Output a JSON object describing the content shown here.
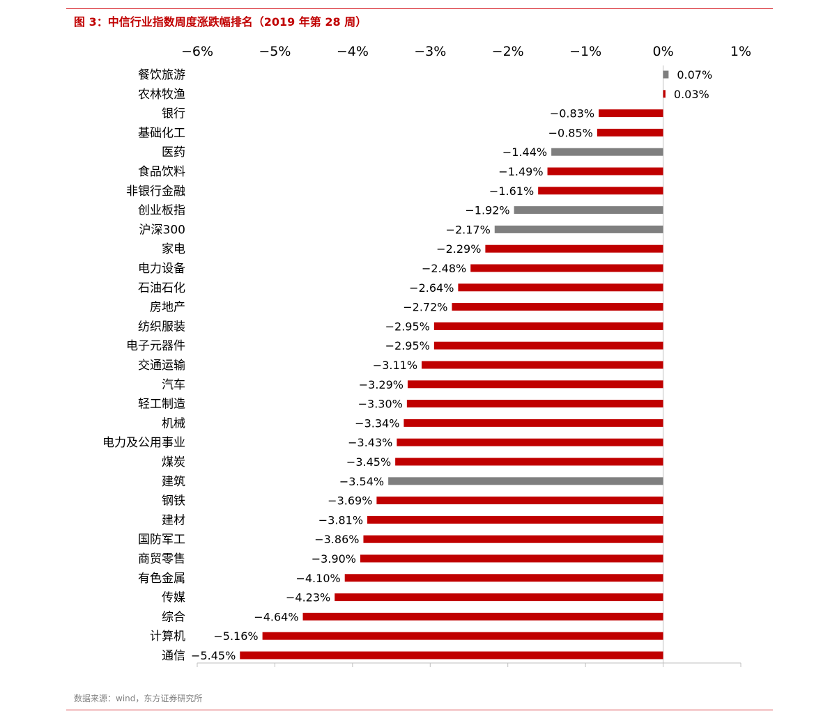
{
  "title": "图 3：中信行业指数周度涨跌幅排名（2019 年第 28 周）",
  "source": "数据来源：wind，东方证券研究所",
  "colors": {
    "accent": "#c00000",
    "highlight": "#7f7f7f",
    "rule": "#d9343a",
    "axis": "#bfbfbf"
  },
  "chart_data": {
    "type": "bar",
    "orientation": "horizontal",
    "title": "图 3：中信行业指数周度涨跌幅排名（2019 年第 28 周）",
    "xlim": [
      -6,
      1
    ],
    "ticks": [
      -6,
      -5,
      -4,
      -3,
      -2,
      -1,
      0,
      1
    ],
    "tick_labels": [
      "−6%",
      "−5%",
      "−4%",
      "−3%",
      "−2%",
      "−1%",
      "0%",
      "1%"
    ],
    "unit": "%",
    "grid": false,
    "legend": "none",
    "categories": [
      "餐饮旅游",
      "农林牧渔",
      "银行",
      "基础化工",
      "医药",
      "食品饮料",
      "非银行金融",
      "创业板指",
      "沪深300",
      "家电",
      "电力设备",
      "石油石化",
      "房地产",
      "纺织服装",
      "电子元器件",
      "交通运输",
      "汽车",
      "轻工制造",
      "机械",
      "电力及公用事业",
      "煤炭",
      "建筑",
      "钢铁",
      "建材",
      "国防军工",
      "商贸零售",
      "有色金属",
      "传媒",
      "综合",
      "计算机",
      "通信"
    ],
    "values": [
      0.07,
      0.03,
      -0.83,
      -0.85,
      -1.44,
      -1.49,
      -1.61,
      -1.92,
      -2.17,
      -2.29,
      -2.48,
      -2.64,
      -2.72,
      -2.95,
      -2.95,
      -3.11,
      -3.29,
      -3.3,
      -3.34,
      -3.43,
      -3.45,
      -3.54,
      -3.69,
      -3.81,
      -3.86,
      -3.9,
      -4.1,
      -4.23,
      -4.64,
      -5.16,
      -5.45
    ],
    "value_labels": [
      "0.07%",
      "0.03%",
      "−0.83%",
      "−0.85%",
      "−1.44%",
      "−1.49%",
      "−1.61%",
      "−1.92%",
      "−2.17%",
      "−2.29%",
      "−2.48%",
      "−2.64%",
      "−2.72%",
      "−2.95%",
      "−2.95%",
      "−3.11%",
      "−3.29%",
      "−3.30%",
      "−3.34%",
      "−3.43%",
      "−3.45%",
      "−3.54%",
      "−3.69%",
      "−3.81%",
      "−3.86%",
      "−3.90%",
      "−4.10%",
      "−4.23%",
      "−4.64%",
      "−5.16%",
      "−5.45%"
    ],
    "highlighted": [
      "餐饮旅游",
      "医药",
      "创业板指",
      "沪深300",
      "建筑"
    ]
  }
}
